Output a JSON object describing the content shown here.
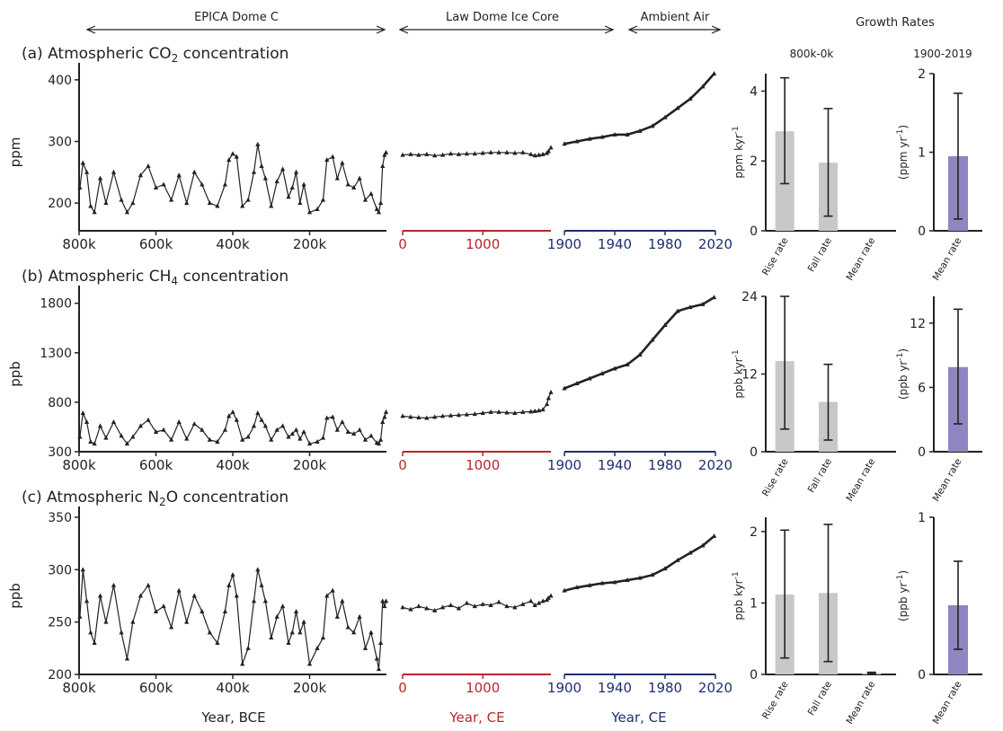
{
  "header": {
    "epica": "EPICA Dome C",
    "law_dome": "Law Dome Ice Core",
    "ambient": "Ambient Air",
    "growth_rates": "Growth Rates",
    "period_a": "800k-0k",
    "period_b": "1900-2019"
  },
  "footer": {
    "xlabel_bce": "Year, BCE",
    "xlabel_ce_red": "Year, CE",
    "xlabel_ce_blue": "Year, CE"
  },
  "colors": {
    "points": "#222222",
    "axis": "#222222",
    "ce_red": "#b8262c",
    "ce_blue": "#1f2f6e",
    "bar_gray": "#c8c8c8",
    "bar_purple": "#8e86c0"
  },
  "chart_data": [
    {
      "id": "a",
      "type": "scatter",
      "title_prefix": "(a) Atmospheric CO",
      "title_sub": "2",
      "title_suffix": " concentration",
      "ylabel": "ppm",
      "ylim": [
        155,
        410
      ],
      "yticks": [
        200,
        300,
        400
      ],
      "ytick_labels": [
        "200",
        "300",
        "400"
      ],
      "marker": "triangle",
      "epica": {
        "xlim": [
          800000,
          0
        ],
        "xticks": [
          800000,
          600000,
          400000,
          200000
        ],
        "xtick_labels": [
          "800k",
          "600k",
          "400k",
          "200k"
        ],
        "x": [
          798000,
          790000,
          780000,
          770000,
          760000,
          745000,
          730000,
          710000,
          690000,
          675000,
          660000,
          640000,
          620000,
          600000,
          580000,
          560000,
          540000,
          520000,
          500000,
          480000,
          460000,
          440000,
          420000,
          410000,
          400000,
          390000,
          375000,
          360000,
          345000,
          335000,
          325000,
          315000,
          300000,
          285000,
          270000,
          255000,
          245000,
          235000,
          225000,
          215000,
          200000,
          180000,
          165000,
          155000,
          140000,
          128000,
          115000,
          100000,
          85000,
          70000,
          55000,
          40000,
          25000,
          20000,
          15000,
          10000,
          5000,
          1000
        ],
        "y": [
          225,
          265,
          250,
          195,
          185,
          240,
          200,
          250,
          205,
          185,
          200,
          245,
          260,
          225,
          230,
          205,
          245,
          200,
          250,
          230,
          200,
          195,
          230,
          270,
          280,
          275,
          195,
          205,
          250,
          295,
          260,
          240,
          195,
          235,
          255,
          210,
          225,
          250,
          200,
          230,
          185,
          190,
          205,
          270,
          275,
          240,
          265,
          230,
          225,
          240,
          205,
          215,
          190,
          185,
          200,
          260,
          278,
          282
        ]
      },
      "law": {
        "xlim": [
          0,
          1850
        ],
        "xticks": [
          0,
          1000
        ],
        "xtick_labels": [
          "0",
          "1000"
        ],
        "x": [
          0,
          100,
          200,
          300,
          400,
          500,
          600,
          700,
          800,
          900,
          1000,
          1100,
          1200,
          1300,
          1400,
          1500,
          1600,
          1650,
          1700,
          1750,
          1800,
          1820,
          1850
        ],
        "y": [
          278,
          279,
          278,
          279,
          277,
          278,
          280,
          279,
          280,
          280,
          281,
          282,
          282,
          282,
          281,
          282,
          279,
          277,
          278,
          279,
          281,
          284,
          290
        ]
      },
      "ambient": {
        "xlim": [
          1900,
          2020
        ],
        "xticks": [
          1900,
          1940,
          1980,
          2020
        ],
        "xtick_labels": [
          "1900",
          "1940",
          "1980",
          "2020"
        ],
        "x": [
          1900,
          1910,
          1920,
          1930,
          1940,
          1950,
          1960,
          1970,
          1980,
          1990,
          2000,
          2010,
          2019
        ],
        "y": [
          296,
          300,
          304,
          307,
          311,
          311,
          317,
          325,
          339,
          354,
          369,
          389,
          410
        ]
      },
      "rates_800k": {
        "ylabel": "ppm kyr",
        "ylabel_sup": "-1",
        "ylim": [
          0,
          4.5
        ],
        "yticks": [
          0,
          2,
          4
        ],
        "ytick_labels": [
          "0",
          "2",
          "4"
        ],
        "categories": [
          "Rise rate",
          "Fall rate",
          "Mean rate"
        ],
        "values": [
          2.85,
          1.95,
          0.0
        ],
        "err_low": [
          1.35,
          0.42,
          0.0
        ],
        "err_high": [
          4.38,
          3.5,
          0.0
        ]
      },
      "rates_modern": {
        "ylabel": "(ppm yr",
        "ylabel_sup": "-1",
        "ylabel_end": ")",
        "ylim": [
          0,
          2
        ],
        "yticks": [
          0,
          1,
          2
        ],
        "ytick_labels": [
          "0",
          "1",
          "2"
        ],
        "categories": [
          "Mean rate"
        ],
        "values": [
          0.95
        ],
        "err_low": [
          0.15
        ],
        "err_high": [
          1.75
        ]
      }
    },
    {
      "id": "b",
      "type": "scatter",
      "title_prefix": "(b) Atmospheric CH",
      "title_sub": "4",
      "title_suffix": " concentration",
      "ylabel": "ppb",
      "ylim": [
        300,
        1870
      ],
      "yticks": [
        300,
        800,
        1300,
        1800
      ],
      "ytick_labels": [
        "300",
        "800",
        "1300",
        "1800"
      ],
      "marker": "triangle",
      "epica": {
        "xlim": [
          800000,
          0
        ],
        "xticks": [
          800000,
          600000,
          400000,
          200000
        ],
        "xtick_labels": [
          "800k",
          "600k",
          "400k",
          "200k"
        ],
        "x": [
          798000,
          790000,
          780000,
          770000,
          760000,
          745000,
          730000,
          710000,
          690000,
          675000,
          660000,
          640000,
          620000,
          600000,
          580000,
          560000,
          540000,
          520000,
          500000,
          480000,
          460000,
          440000,
          420000,
          410000,
          400000,
          390000,
          375000,
          360000,
          345000,
          335000,
          325000,
          315000,
          300000,
          285000,
          270000,
          255000,
          245000,
          235000,
          225000,
          215000,
          200000,
          180000,
          165000,
          155000,
          140000,
          128000,
          115000,
          100000,
          85000,
          70000,
          55000,
          40000,
          25000,
          20000,
          15000,
          10000,
          5000,
          1000
        ],
        "y": [
          450,
          690,
          600,
          400,
          380,
          560,
          440,
          600,
          460,
          380,
          450,
          560,
          620,
          500,
          520,
          420,
          600,
          430,
          580,
          520,
          420,
          400,
          520,
          660,
          700,
          620,
          420,
          450,
          560,
          690,
          620,
          560,
          420,
          520,
          560,
          450,
          480,
          520,
          430,
          500,
          380,
          400,
          440,
          640,
          650,
          520,
          600,
          500,
          480,
          520,
          420,
          460,
          390,
          380,
          420,
          600,
          650,
          700
        ]
      },
      "law": {
        "xlim": [
          0,
          1850
        ],
        "xticks": [
          0,
          1000
        ],
        "xtick_labels": [
          "0",
          "1000"
        ],
        "x": [
          0,
          100,
          200,
          300,
          400,
          500,
          600,
          700,
          800,
          900,
          1000,
          1100,
          1200,
          1300,
          1400,
          1500,
          1600,
          1650,
          1700,
          1750,
          1800,
          1820,
          1850
        ],
        "y": [
          660,
          650,
          645,
          640,
          650,
          660,
          665,
          670,
          675,
          680,
          690,
          700,
          700,
          695,
          690,
          700,
          705,
          710,
          715,
          725,
          780,
          840,
          900
        ]
      },
      "ambient": {
        "xlim": [
          1900,
          2020
        ],
        "xticks": [
          1900,
          1940,
          1980,
          2020
        ],
        "xtick_labels": [
          "1900",
          "1940",
          "1980",
          "2020"
        ],
        "x": [
          1900,
          1910,
          1920,
          1930,
          1940,
          1950,
          1960,
          1970,
          1980,
          1990,
          2000,
          2010,
          2019
        ],
        "y": [
          940,
          990,
          1040,
          1090,
          1140,
          1180,
          1280,
          1430,
          1580,
          1720,
          1760,
          1790,
          1860
        ]
      },
      "rates_800k": {
        "ylabel": "ppb kyr",
        "ylabel_sup": "-1",
        "ylim": [
          0,
          24
        ],
        "yticks": [
          0,
          12,
          24
        ],
        "ytick_labels": [
          "0",
          "12",
          "24"
        ],
        "categories": [
          "Rise rate",
          "Fall rate",
          "Mean rate"
        ],
        "values": [
          14.0,
          7.7,
          0.0
        ],
        "err_low": [
          3.5,
          1.8,
          0.0
        ],
        "err_high": [
          24.0,
          13.5,
          0.0
        ]
      },
      "rates_modern": {
        "ylabel": "(ppb yr",
        "ylabel_sup": "-1",
        "ylabel_end": ")",
        "ylim": [
          0,
          14.5
        ],
        "yticks": [
          0,
          6,
          12
        ],
        "ytick_labels": [
          "0",
          "6",
          "12"
        ],
        "categories": [
          "Mean rate"
        ],
        "values": [
          7.9
        ],
        "err_low": [
          2.6
        ],
        "err_high": [
          13.3
        ]
      }
    },
    {
      "id": "c",
      "type": "scatter",
      "title_prefix": "(c) Atmospheric N",
      "title_sub": "2",
      "title_suffix": "O concentration",
      "ylabel": "ppb",
      "ylim": [
        200,
        350
      ],
      "yticks": [
        200,
        250,
        300,
        350
      ],
      "ytick_labels": [
        "200",
        "250",
        "300",
        "350"
      ],
      "marker": "triangle",
      "epica": {
        "xlim": [
          800000,
          0
        ],
        "xticks": [
          800000,
          600000,
          400000,
          200000
        ],
        "xtick_labels": [
          "800k",
          "600k",
          "400k",
          "200k"
        ],
        "x": [
          798000,
          790000,
          780000,
          770000,
          760000,
          745000,
          730000,
          710000,
          690000,
          675000,
          660000,
          640000,
          620000,
          600000,
          580000,
          560000,
          540000,
          520000,
          500000,
          480000,
          460000,
          440000,
          420000,
          410000,
          400000,
          390000,
          375000,
          360000,
          345000,
          335000,
          325000,
          315000,
          300000,
          285000,
          270000,
          255000,
          245000,
          235000,
          225000,
          215000,
          200000,
          180000,
          165000,
          155000,
          140000,
          128000,
          115000,
          100000,
          85000,
          70000,
          55000,
          40000,
          25000,
          20000,
          15000,
          10000,
          5000,
          1000
        ],
        "y": [
          255,
          300,
          270,
          240,
          230,
          275,
          250,
          285,
          240,
          215,
          250,
          275,
          285,
          260,
          265,
          245,
          280,
          250,
          275,
          260,
          240,
          230,
          260,
          285,
          295,
          275,
          210,
          225,
          270,
          300,
          285,
          270,
          235,
          255,
          265,
          230,
          240,
          260,
          240,
          250,
          210,
          225,
          235,
          275,
          280,
          255,
          270,
          245,
          240,
          255,
          225,
          240,
          215,
          205,
          230,
          270,
          265,
          270
        ]
      },
      "law": {
        "xlim": [
          0,
          1850
        ],
        "xticks": [
          0,
          1000
        ],
        "xtick_labels": [
          "0",
          "1000"
        ],
        "x": [
          0,
          100,
          200,
          300,
          400,
          500,
          600,
          700,
          800,
          900,
          1000,
          1100,
          1200,
          1300,
          1400,
          1500,
          1600,
          1650,
          1700,
          1750,
          1800,
          1820,
          1850
        ],
        "y": [
          264,
          262,
          265,
          263,
          261,
          264,
          266,
          263,
          268,
          265,
          267,
          266,
          269,
          265,
          264,
          267,
          270,
          266,
          268,
          270,
          271,
          273,
          275
        ]
      },
      "ambient": {
        "xlim": [
          1900,
          2020
        ],
        "xticks": [
          1900,
          1940,
          1980,
          2020
        ],
        "xtick_labels": [
          "1900",
          "1940",
          "1980",
          "2020"
        ],
        "x": [
          1900,
          1910,
          1920,
          1930,
          1940,
          1950,
          1960,
          1970,
          1980,
          1990,
          2000,
          2010,
          2019
        ],
        "y": [
          280,
          283,
          285,
          287,
          288,
          290,
          292,
          295,
          301,
          309,
          316,
          323,
          332
        ]
      },
      "rates_800k": {
        "ylabel": "ppb kyr",
        "ylabel_sup": "-1",
        "ylim": [
          0,
          2.2
        ],
        "yticks": [
          0,
          1,
          2
        ],
        "ytick_labels": [
          "0",
          "1",
          "2"
        ],
        "categories": [
          "Rise rate",
          "Fall rate",
          "Mean rate"
        ],
        "values": [
          1.12,
          1.14,
          0.02
        ],
        "err_low": [
          0.23,
          0.18,
          0.01
        ],
        "err_high": [
          2.02,
          2.1,
          0.03
        ]
      },
      "rates_modern": {
        "ylabel": "(ppb yr",
        "ylabel_sup": "-1",
        "ylabel_end": ")",
        "ylim": [
          0,
          1
        ],
        "yticks": [
          0,
          1
        ],
        "ytick_labels": [
          "0",
          "1"
        ],
        "categories": [
          "Mean rate"
        ],
        "values": [
          0.44
        ],
        "err_low": [
          0.16
        ],
        "err_high": [
          0.72
        ]
      }
    }
  ]
}
